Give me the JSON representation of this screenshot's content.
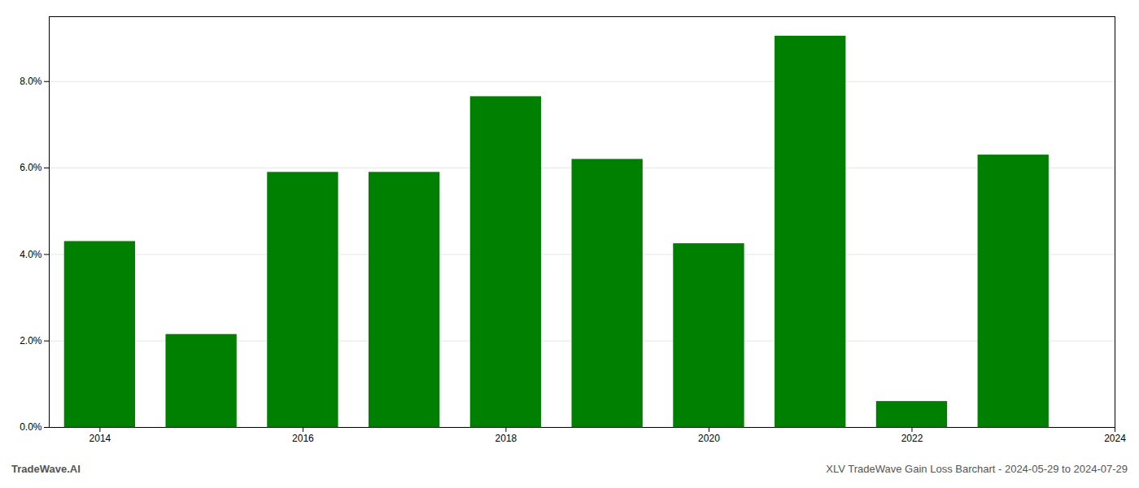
{
  "chart_data": {
    "type": "bar",
    "x": [
      2014,
      2015,
      2016,
      2017,
      2018,
      2019,
      2020,
      2021,
      2022,
      2023
    ],
    "values": [
      0.043,
      0.0215,
      0.059,
      0.059,
      0.0765,
      0.062,
      0.0425,
      0.0905,
      0.006,
      0.063
    ],
    "color": "#008000",
    "xlim": [
      2013.5,
      2024.0
    ],
    "xticks": [
      2014,
      2016,
      2018,
      2020,
      2022,
      2024
    ],
    "ylim": [
      0,
      0.095
    ],
    "yticks": [
      {
        "value": 0.0,
        "label": "0.0%"
      },
      {
        "value": 0.02,
        "label": "2.0%"
      },
      {
        "value": 0.04,
        "label": "4.0%"
      },
      {
        "value": 0.06,
        "label": "6.0%"
      },
      {
        "value": 0.08,
        "label": "8.0%"
      }
    ],
    "grid": true,
    "annotations": [
      "TradeWave.AI",
      "XLV TradeWave Gain Loss Barchart - 2024-05-29 to 2024-07-29"
    ]
  }
}
